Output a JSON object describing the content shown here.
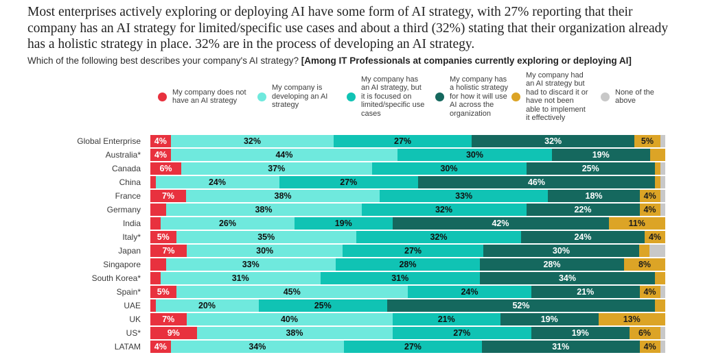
{
  "title": "Most enterprises actively exploring or deploying AI have some form of AI strategy, with 27% reporting that their company has an AI strategy for limited/specific use cases and about a third (32%) stating that their organization already has a holistic strategy in place. 32% are in the process of developing an AI strategy.",
  "subtitle": {
    "question": "Which of the following best describes your company's AI strategy? ",
    "emphasis": "[Among IT Professionals at companies currently exploring or deploying AI]"
  },
  "chart_data": {
    "type": "bar",
    "variant": "horizontal-stacked",
    "unit": "percent",
    "xlim": [
      0,
      100
    ],
    "legend_position": "top",
    "categories": [
      "Global Enterprise",
      "Australia*",
      "Canada",
      "China",
      "France",
      "Germany",
      "India",
      "Italy*",
      "Japan",
      "Singapore",
      "South Korea*",
      "Spain*",
      "UAE",
      "UK",
      "US*",
      "LATAM"
    ],
    "series": [
      {
        "name": "My company does not have an AI strategy",
        "color": "#e8313e",
        "values": [
          4,
          4,
          6,
          1,
          7,
          3,
          2,
          5,
          7,
          3,
          2,
          5,
          1,
          7,
          9,
          4
        ]
      },
      {
        "name": "My company is developing an AI strategy",
        "color": "#6fe9dd",
        "values": [
          32,
          44,
          37,
          24,
          38,
          38,
          26,
          35,
          30,
          33,
          31,
          45,
          20,
          40,
          38,
          34
        ]
      },
      {
        "name": "My company has an AI strategy, but it is focused on limited/specific use cases",
        "color": "#10c3b4",
        "values": [
          27,
          30,
          30,
          27,
          33,
          32,
          19,
          32,
          27,
          28,
          31,
          24,
          25,
          21,
          27,
          27
        ]
      },
      {
        "name": "My company has a holistic strategy for how it will use AI across the organization",
        "color": "#15685e",
        "values": [
          32,
          19,
          25,
          46,
          18,
          22,
          42,
          24,
          30,
          28,
          34,
          21,
          52,
          19,
          19,
          31
        ]
      },
      {
        "name": "My company had an AI strategy but had to discard it or have not been able to implement it effectively",
        "color": "#dca426",
        "values": [
          5,
          3,
          1,
          1,
          4,
          4,
          11,
          4,
          2,
          8,
          2,
          4,
          2,
          13,
          6,
          4
        ]
      },
      {
        "name": "None of the above",
        "color": "#c8c8c8",
        "values": [
          1,
          0,
          1,
          1,
          1,
          1,
          0,
          0,
          3,
          0,
          0,
          1,
          0,
          0,
          1,
          1
        ]
      }
    ],
    "value_labels": [
      [
        "4%",
        "32%",
        "27%",
        "32%",
        "5%",
        ""
      ],
      [
        "4%",
        "44%",
        "30%",
        "19%",
        "",
        ""
      ],
      [
        "6%",
        "37%",
        "30%",
        "25%",
        "",
        ""
      ],
      [
        "",
        "24%",
        "27%",
        "46%",
        "",
        ""
      ],
      [
        "7%",
        "38%",
        "33%",
        "18%",
        "4%",
        ""
      ],
      [
        "",
        "38%",
        "32%",
        "22%",
        "4%",
        ""
      ],
      [
        "",
        "26%",
        "19%",
        "42%",
        "11%",
        ""
      ],
      [
        "5%",
        "35%",
        "32%",
        "24%",
        "4%",
        ""
      ],
      [
        "7%",
        "30%",
        "27%",
        "30%",
        "",
        ""
      ],
      [
        "",
        "33%",
        "28%",
        "28%",
        "8%",
        ""
      ],
      [
        "",
        "31%",
        "31%",
        "34%",
        "",
        ""
      ],
      [
        "5%",
        "45%",
        "24%",
        "21%",
        "4%",
        ""
      ],
      [
        "",
        "20%",
        "25%",
        "52%",
        "",
        ""
      ],
      [
        "7%",
        "40%",
        "21%",
        "19%",
        "13%",
        ""
      ],
      [
        "9%",
        "38%",
        "27%",
        "19%",
        "6%",
        ""
      ],
      [
        "4%",
        "34%",
        "27%",
        "31%",
        "4%",
        ""
      ]
    ],
    "label_text_colors": [
      "#ffffff",
      "#101010",
      "#101010",
      "#ffffff",
      "#1c1c1c",
      "#333333"
    ],
    "series_slugs": [
      "no-strategy",
      "developing",
      "limited-use-cases",
      "holistic",
      "discarded",
      "none-of-above"
    ]
  }
}
